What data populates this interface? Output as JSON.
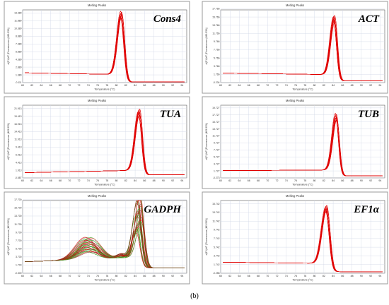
{
  "caption": "(b)",
  "chart_data": [
    {
      "type": "line",
      "title": "Melting Peaks",
      "gene_label": "Cons4",
      "xlabel": "Temperature (°C)",
      "ylabel": "-d(F1)/dT (Fluorescence (483-533))",
      "xlim": [
        60,
        95
      ],
      "ylim": [
        -0.111,
        14.0
      ],
      "x_ticks": [
        60,
        62,
        64,
        66,
        68,
        70,
        72,
        74,
        76,
        78,
        80,
        82,
        84,
        86,
        88,
        90,
        92,
        94
      ],
      "y_ticks": [
        -0.111,
        1.389,
        2.889,
        4.389,
        5.889,
        7.389,
        8.889,
        10.389,
        11.889,
        13.389
      ],
      "grid": true,
      "colors": [
        "#e00000"
      ],
      "curves": {
        "count": 14,
        "tm": 81.0,
        "peak": 13.1,
        "sigma": 0.85,
        "baseline_start": 1.8,
        "baseline_end": 1.45,
        "post_base": 0.0,
        "spread": 0.06,
        "hump": null
      }
    },
    {
      "type": "line",
      "title": "Melting Peaks",
      "gene_label": "ACT",
      "xlabel": "Temperature (°C)",
      "ylabel": "-d(F1)/dT (Fluorescence (483-533))",
      "xlim": [
        60,
        95
      ],
      "ylim": [
        -0.234,
        17.5
      ],
      "x_ticks": [
        60,
        62,
        64,
        66,
        68,
        70,
        72,
        74,
        76,
        78,
        80,
        82,
        84,
        86,
        88,
        90,
        92,
        94
      ],
      "y_ticks": [
        -0.234,
        1.766,
        3.766,
        5.766,
        7.766,
        9.766,
        11.766,
        13.766,
        15.766,
        17.766
      ],
      "grid": true,
      "colors": [
        "#e00000"
      ],
      "curves": {
        "count": 14,
        "tm": 84.2,
        "peak": 15.3,
        "sigma": 0.8,
        "baseline_start": 2.1,
        "baseline_end": 1.7,
        "post_base": 0.2,
        "spread": 0.06,
        "hump": null
      }
    },
    {
      "type": "line",
      "title": "Melting Peaks",
      "gene_label": "TUA",
      "xlabel": "Temperature (°C)",
      "ylabel": "-d(F1)/dT (Fluorescence (483-533))",
      "xlim": [
        60,
        95
      ],
      "ylim": [
        -0.587,
        23.0
      ],
      "x_ticks": [
        60,
        62,
        64,
        66,
        68,
        70,
        72,
        74,
        76,
        78,
        80,
        82,
        84,
        86,
        88,
        90,
        92,
        94
      ],
      "y_ticks": [
        -0.587,
        1.913,
        4.413,
        6.913,
        9.413,
        11.913,
        14.413,
        16.913,
        19.413,
        21.913
      ],
      "grid": true,
      "colors": [
        "#e00000"
      ],
      "curves": {
        "count": 14,
        "tm": 84.8,
        "peak": 20.5,
        "sigma": 0.85,
        "baseline_start": 1.1,
        "baseline_end": 1.9,
        "post_base": 0.4,
        "spread": 0.07,
        "hump": null
      }
    },
    {
      "type": "line",
      "title": "Melting Peaks",
      "gene_label": "TUB",
      "xlabel": "Temperature (°C)",
      "ylabel": "-d(F1)/dT (Fluorescence (483-533))",
      "xlim": [
        60,
        95
      ],
      "ylim": [
        -0.273,
        20.5
      ],
      "x_ticks": [
        60,
        62,
        64,
        66,
        68,
        70,
        72,
        74,
        76,
        78,
        80,
        82,
        84,
        86,
        88,
        90,
        92,
        94
      ],
      "y_ticks": [
        -0.273,
        1.727,
        3.727,
        5.727,
        7.727,
        9.727,
        11.727,
        13.727,
        15.727,
        17.727,
        19.727
      ],
      "grid": true,
      "colors": [
        "#e00000"
      ],
      "curves": {
        "count": 14,
        "tm": 84.6,
        "peak": 17.2,
        "sigma": 0.8,
        "baseline_start": 1.8,
        "baseline_end": 2.0,
        "post_base": 0.3,
        "spread": 0.07,
        "hump": null
      }
    },
    {
      "type": "line",
      "title": "Melting Peaks",
      "gene_label": "GADPH",
      "xlabel": "Temperature (°C)",
      "ylabel": "-d(F1)/dT (Fluorescence (483-533))",
      "xlim": [
        60,
        95
      ],
      "ylim": [
        -0.3,
        17.5
      ],
      "x_ticks": [
        60,
        62,
        64,
        66,
        68,
        70,
        72,
        74,
        76,
        78,
        80,
        82,
        84,
        86,
        88,
        90,
        92,
        94
      ],
      "y_ticks": [
        -0.3,
        1.7,
        3.7,
        5.7,
        7.7,
        9.7,
        11.7,
        13.7,
        15.7,
        17.7
      ],
      "grid": true,
      "colors": [
        "#e00000",
        "#1fbf1f",
        "#8b2a2a"
      ],
      "curves": {
        "count": 30,
        "tm": 84.8,
        "peak": 14.5,
        "sigma": 1.0,
        "baseline_start": 2.5,
        "baseline_end": 3.5,
        "post_base": 1.0,
        "spread": 0.35,
        "hump": {
          "center": 74.0,
          "height": 4.0,
          "sigma": 2.2
        }
      }
    },
    {
      "type": "line",
      "title": "Melting Peaks",
      "gene_label": "EF1α",
      "xlabel": "Temperature (°C)",
      "ylabel": "-d(F1)/dT (Fluorescence (483-533))",
      "xlim": [
        60,
        95
      ],
      "ylim": [
        -0.258,
        16.5
      ],
      "x_ticks": [
        60,
        62,
        64,
        66,
        68,
        70,
        72,
        74,
        76,
        78,
        80,
        82,
        84,
        86,
        88,
        90,
        92,
        94
      ],
      "y_ticks": [
        -0.258,
        1.742,
        3.742,
        5.742,
        7.742,
        9.742,
        11.742,
        13.742,
        15.742
      ],
      "grid": true,
      "colors": [
        "#e00000"
      ],
      "curves": {
        "count": 14,
        "tm": 82.5,
        "peak": 14.6,
        "sigma": 0.95,
        "baseline_start": 2.3,
        "baseline_end": 2.0,
        "post_base": 0.1,
        "spread": 0.06,
        "hump": null
      }
    }
  ]
}
